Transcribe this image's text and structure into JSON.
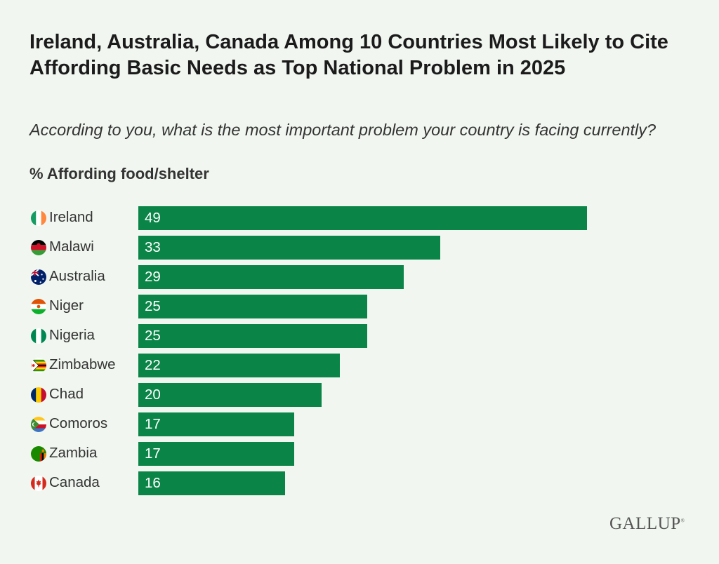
{
  "title": "Ireland, Australia, Canada Among 10 Countries Most Likely to Cite Affording Basic Needs as Top National Problem in 2025",
  "subtitle": "According to you, what is the most important problem your country is facing currently?",
  "metric_label": "% Affording food/shelter",
  "logo": "GALLUP",
  "colors": {
    "bar": "#0a8547",
    "background": "#f1f7f0"
  },
  "chart_data": {
    "type": "bar",
    "orientation": "horizontal",
    "categories": [
      "Ireland",
      "Malawi",
      "Australia",
      "Niger",
      "Nigeria",
      "Zimbabwe",
      "Chad",
      "Comoros",
      "Zambia",
      "Canada"
    ],
    "values": [
      49,
      33,
      29,
      25,
      25,
      22,
      20,
      17,
      17,
      16
    ],
    "flag_icons": [
      "ireland-flag-icon",
      "malawi-flag-icon",
      "australia-flag-icon",
      "niger-flag-icon",
      "nigeria-flag-icon",
      "zimbabwe-flag-icon",
      "chad-flag-icon",
      "comoros-flag-icon",
      "zambia-flag-icon",
      "canada-flag-icon"
    ],
    "xlim": [
      0,
      50
    ],
    "grid": false,
    "data_labels": "inside-left"
  }
}
